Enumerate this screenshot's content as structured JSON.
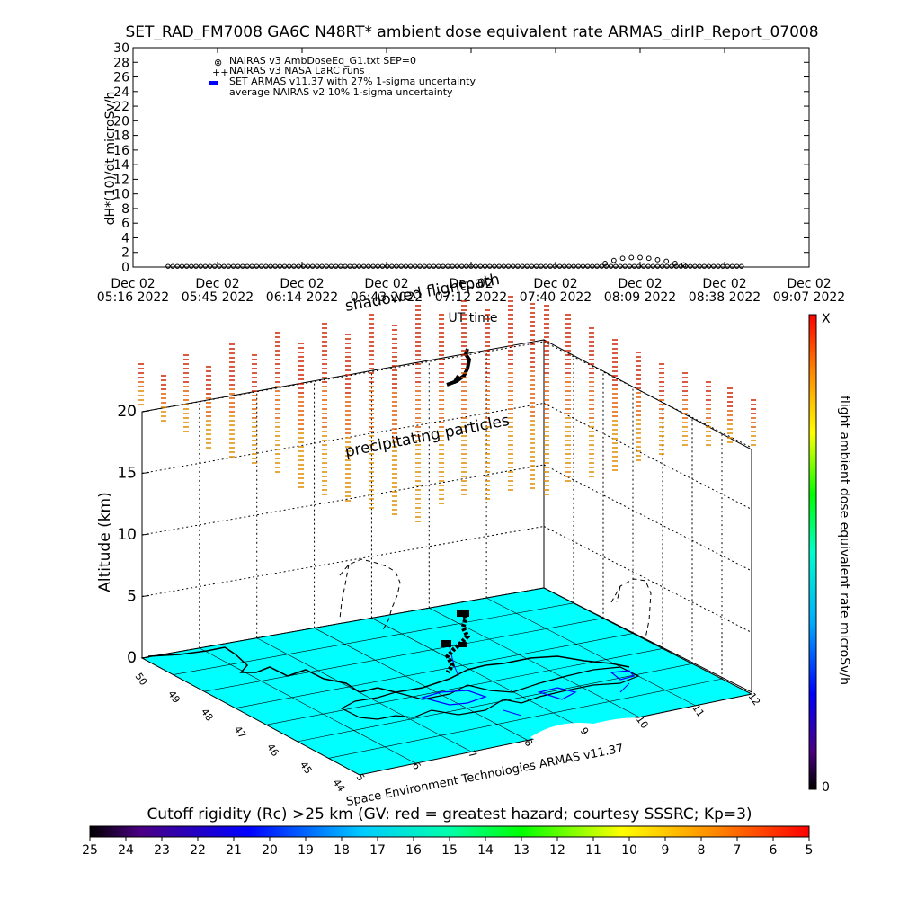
{
  "title": "SET_RAD_FM7008  GA6C N48RT* ambient dose equivalent rate ARMAS_dirIP_Report_07008",
  "colors": {
    "earth": "#00ffff",
    "nairas_v3": "#000000",
    "armas": "#0000ff",
    "background": "#ffffff"
  },
  "chart_data": [
    {
      "type": "scatter",
      "ylabel": "dH*(10)/dt microSv/h",
      "xlabel": "UT time",
      "ylim": [
        0,
        30
      ],
      "yticks": [
        "0",
        "2",
        "4",
        "6",
        "8",
        "10",
        "12",
        "14",
        "16",
        "18",
        "20",
        "22",
        "24",
        "26",
        "28",
        "30"
      ],
      "xticks": [
        {
          "top": "Dec 02",
          "bottom": "05:16  2022"
        },
        {
          "top": "Dec 02",
          "bottom": "05:45  2022"
        },
        {
          "top": "Dec 02",
          "bottom": "06:14  2022"
        },
        {
          "top": "Dec 02",
          "bottom": "06:43  2022"
        },
        {
          "top": "Dec 02",
          "bottom": "07:12  2022"
        },
        {
          "top": "Dec 02",
          "bottom": "07:40  2022"
        },
        {
          "top": "Dec 02",
          "bottom": "08:09  2022"
        },
        {
          "top": "Dec 02",
          "bottom": "08:38  2022"
        },
        {
          "top": "Dec 02",
          "bottom": "09:07  2022"
        }
      ],
      "xrange_minutes": [
        0,
        232
      ],
      "legend": [
        "NAIRAS v3 AmbDoseEq_G1.txt SEP=0",
        "NAIRAS v3 NASA LaRC runs",
        "SET ARMAS v11.37 with 27% 1-sigma uncertainty",
        "average NAIRAS v2 10% 1-sigma uncertainty"
      ],
      "series": [
        {
          "name": "NAIRAS v3 AmbDoseEq_G1.txt SEP=0",
          "x_minutes_start": 12,
          "x_minutes_end": 209,
          "baseline_value": 0.1,
          "bump_values": [
            {
              "x": 162,
              "y": 0.5
            },
            {
              "x": 165,
              "y": 0.9
            },
            {
              "x": 168,
              "y": 1.2
            },
            {
              "x": 171,
              "y": 1.3
            },
            {
              "x": 174,
              "y": 1.3
            },
            {
              "x": 177,
              "y": 1.2
            },
            {
              "x": 180,
              "y": 1.0
            },
            {
              "x": 183,
              "y": 0.8
            },
            {
              "x": 186,
              "y": 0.5
            },
            {
              "x": 189,
              "y": 0.3
            }
          ]
        }
      ]
    },
    {
      "type": "scatter",
      "zlabel": "Altitude (km)",
      "zticks": [
        "0",
        "5",
        "10",
        "15",
        "20"
      ],
      "lat_ticks": [
        "44",
        "45",
        "46",
        "47",
        "48",
        "49",
        "50"
      ],
      "lon_ticks": [
        "5",
        "6",
        "7",
        "8",
        "9",
        "10",
        "11",
        "12"
      ],
      "annotations": [
        "precipitating particles",
        "shadowed flightpath"
      ],
      "colorbar": {
        "label": "flight ambient dose equivalent rate microSv/h",
        "top": "X",
        "bottom": "0"
      }
    },
    {
      "type": "heatmap",
      "title": "Cutoff rigidity (Rc) >25 km  (GV: red = greatest hazard; courtesy SSSRC; Kp=3)",
      "ticks": [
        "25",
        "24",
        "23",
        "22",
        "21",
        "20",
        "19",
        "18",
        "17",
        "16",
        "15",
        "14",
        "13",
        "12",
        "11",
        "10",
        "9",
        "8",
        "7",
        "6",
        "5"
      ]
    }
  ],
  "credit": "Space Environment Technologies ARMAS v11.37"
}
